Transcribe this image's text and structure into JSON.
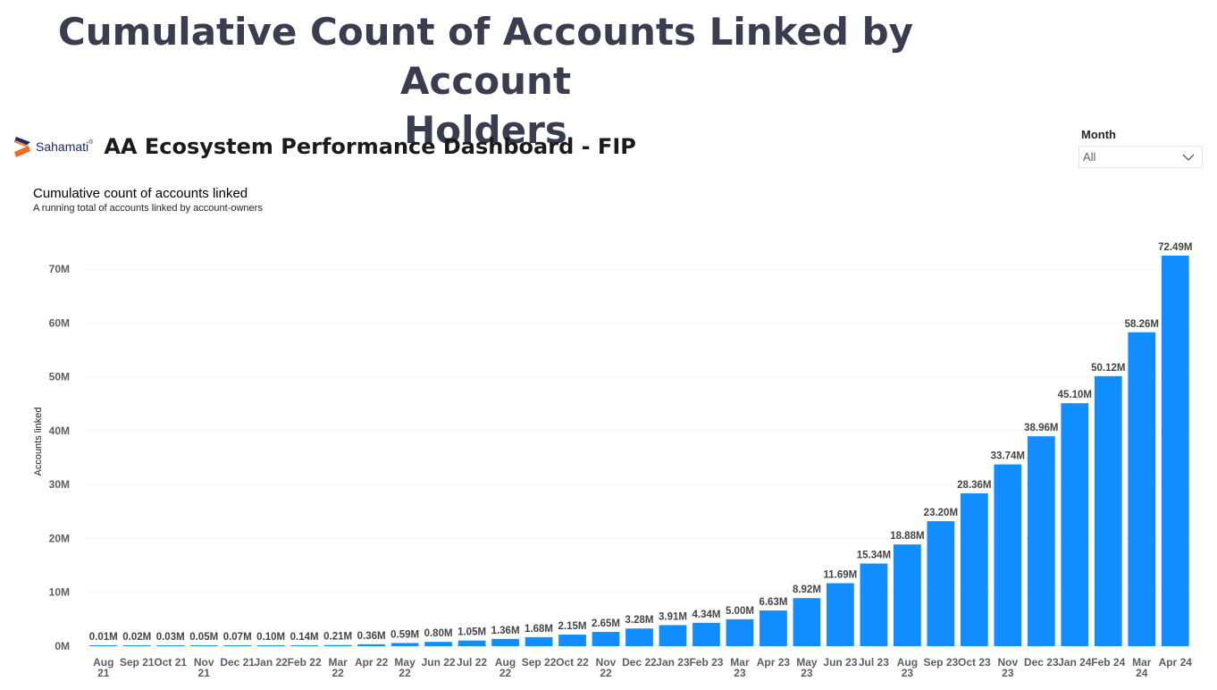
{
  "page": {
    "heading_line1": "Cumulative Count of Accounts Linked by Account",
    "heading_line2": "Holders"
  },
  "dashboard": {
    "logo_text": "Sahamati",
    "logo_mark": "®",
    "title": "AA Ecosystem Performance Dashboard - FIP"
  },
  "slicer": {
    "label": "Month",
    "value": "All",
    "icon": "chevron-down-icon"
  },
  "colors": {
    "bar": "#118DFF",
    "heading": "#3a3d4f",
    "logo_orange": "#F26B21",
    "logo_blue": "#1E2A6B"
  },
  "chart_data": {
    "type": "bar",
    "title": "Cumulative count of accounts linked",
    "subtitle": "A running total of accounts linked by account-owners",
    "xlabel": "",
    "ylabel": "Accounts linked",
    "ylim": [
      0,
      70
    ],
    "yticks": [
      0,
      10,
      20,
      30,
      40,
      50,
      60,
      70
    ],
    "ytick_labels": [
      "0M",
      "10M",
      "20M",
      "30M",
      "40M",
      "50M",
      "60M",
      "70M"
    ],
    "unit": "M",
    "grid": true,
    "categories": [
      [
        "Aug",
        "21"
      ],
      [
        "Sep 21"
      ],
      [
        "Oct 21"
      ],
      [
        "Nov",
        "21"
      ],
      [
        "Dec 21"
      ],
      [
        "Jan 22"
      ],
      [
        "Feb 22"
      ],
      [
        "Mar",
        "22"
      ],
      [
        "Apr 22"
      ],
      [
        "May",
        "22"
      ],
      [
        "Jun 22"
      ],
      [
        "Jul 22"
      ],
      [
        "Aug",
        "22"
      ],
      [
        "Sep 22"
      ],
      [
        "Oct 22"
      ],
      [
        "Nov",
        "22"
      ],
      [
        "Dec 22"
      ],
      [
        "Jan 23"
      ],
      [
        "Feb 23"
      ],
      [
        "Mar",
        "23"
      ],
      [
        "Apr 23"
      ],
      [
        "May",
        "23"
      ],
      [
        "Jun 23"
      ],
      [
        "Jul 23"
      ],
      [
        "Aug",
        "23"
      ],
      [
        "Sep 23"
      ],
      [
        "Oct 23"
      ],
      [
        "Nov",
        "23"
      ],
      [
        "Dec 23"
      ],
      [
        "Jan 24"
      ],
      [
        "Feb 24"
      ],
      [
        "Mar",
        "24"
      ],
      [
        "Apr 24"
      ]
    ],
    "values": [
      0.01,
      0.02,
      0.03,
      0.05,
      0.07,
      0.1,
      0.14,
      0.21,
      0.36,
      0.59,
      0.8,
      1.05,
      1.36,
      1.68,
      2.15,
      2.65,
      3.28,
      3.91,
      4.34,
      5.0,
      6.63,
      8.92,
      11.69,
      15.34,
      18.88,
      23.2,
      28.36,
      33.74,
      38.96,
      45.1,
      50.12,
      58.26,
      72.49
    ],
    "data_labels": [
      "0.01M",
      "0.02M",
      "0.03M",
      "0.05M",
      "0.07M",
      "0.10M",
      "0.14M",
      "0.21M",
      "0.36M",
      "0.59M",
      "0.80M",
      "1.05M",
      "1.36M",
      "1.68M",
      "2.15M",
      "2.65M",
      "3.28M",
      "3.91M",
      "4.34M",
      "5.00M",
      "6.63M",
      "8.92M",
      "11.69M",
      "15.34M",
      "18.88M",
      "23.20M",
      "28.36M",
      "33.74M",
      "38.96M",
      "45.10M",
      "50.12M",
      "58.26M",
      "72.49M"
    ]
  }
}
